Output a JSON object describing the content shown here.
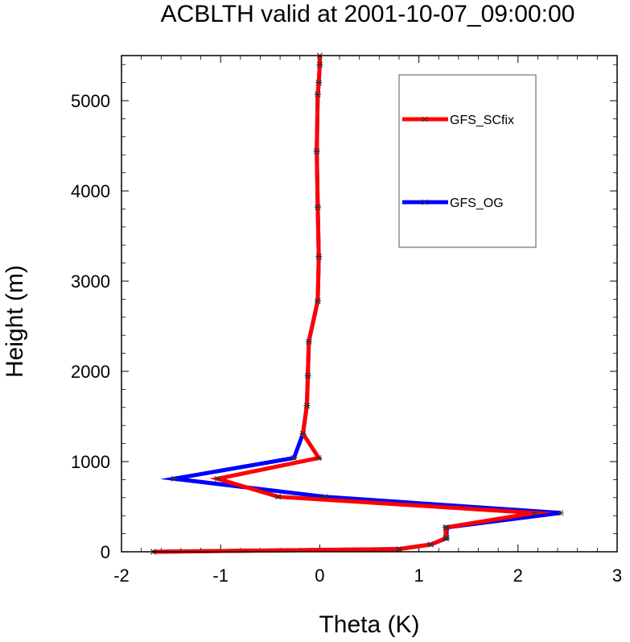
{
  "chart_data": {
    "type": "line",
    "title": "ACBLTH valid at 2001-10-07_09:00:00",
    "xlabel": "Theta (K)",
    "ylabel": "Height (m)",
    "xlim": [
      -2,
      3
    ],
    "ylim": [
      0,
      5500
    ],
    "xticks": [
      -2,
      -1,
      0,
      1,
      2,
      3
    ],
    "xtick_labels": [
      "-2",
      "-1",
      "0",
      "1",
      "2",
      "3"
    ],
    "yticks": [
      0,
      1000,
      2000,
      3000,
      4000,
      5000
    ],
    "ytick_labels": [
      "0",
      "1000",
      "2000",
      "3000",
      "4000",
      "5000"
    ],
    "legend_position": "top-right",
    "series": [
      {
        "name": "GFS_SCfix",
        "color": "#ff0000",
        "x": [
          -1.68,
          0.8,
          1.12,
          1.27,
          1.27,
          2.17,
          -0.42,
          -1.03,
          -0.01,
          -0.17,
          -0.13,
          -0.12,
          -0.11,
          -0.02,
          -0.01,
          -0.02,
          -0.03,
          -0.02,
          -0.01,
          0.0,
          0.0
        ],
        "y": [
          0,
          30,
          80,
          150,
          270,
          430,
          610,
          810,
          1040,
          1310,
          1620,
          1950,
          2330,
          2780,
          3270,
          3820,
          4440,
          5070,
          5200,
          5400,
          5500
        ]
      },
      {
        "name": "GFS_OG",
        "color": "#0000ff",
        "x": [
          -1.68,
          0.8,
          1.12,
          1.28,
          1.28,
          2.43,
          0.05,
          -1.47,
          -0.26,
          -0.17,
          -0.13,
          -0.12,
          -0.11,
          -0.02,
          -0.01,
          -0.02,
          -0.03,
          -0.02,
          -0.01,
          0.0,
          0.0
        ],
        "y": [
          0,
          30,
          80,
          150,
          270,
          430,
          610,
          810,
          1040,
          1310,
          1620,
          1950,
          2330,
          2780,
          3270,
          3820,
          4440,
          5070,
          5200,
          5400,
          5500
        ]
      }
    ]
  }
}
